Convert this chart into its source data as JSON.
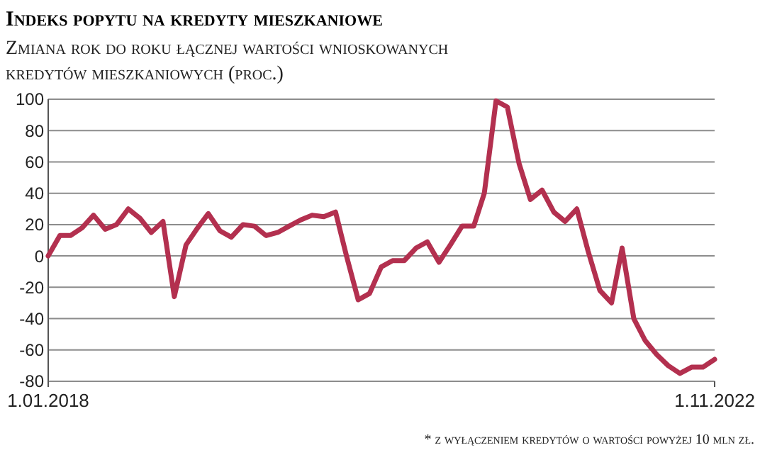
{
  "chart_data": {
    "type": "line",
    "title": "Indeks popytu na kredyty mieszkaniowe",
    "subtitle": "Zmiana rok do roku łącznej wartości wnioskowanych kredytów mieszkaniowych (proc.)",
    "annotations": [
      "* z wyłączeniem kredytów o wartości powyżej 10 mln zł."
    ],
    "x": [
      "2018-01",
      "2018-02",
      "2018-03",
      "2018-04",
      "2018-05",
      "2018-06",
      "2018-07",
      "2018-08",
      "2018-09",
      "2018-10",
      "2018-11",
      "2018-12",
      "2019-01",
      "2019-02",
      "2019-03",
      "2019-04",
      "2019-05",
      "2019-06",
      "2019-07",
      "2019-08",
      "2019-09",
      "2019-10",
      "2019-11",
      "2019-12",
      "2020-01",
      "2020-02",
      "2020-03",
      "2020-04",
      "2020-05",
      "2020-06",
      "2020-07",
      "2020-08",
      "2020-09",
      "2020-10",
      "2020-11",
      "2020-12",
      "2021-01",
      "2021-02",
      "2021-03",
      "2021-04",
      "2021-05",
      "2021-06",
      "2021-07",
      "2021-08",
      "2021-09",
      "2021-10",
      "2021-11",
      "2021-12",
      "2022-01",
      "2022-02",
      "2022-03",
      "2022-04",
      "2022-05",
      "2022-06",
      "2022-07",
      "2022-08",
      "2022-09",
      "2022-10",
      "2022-11"
    ],
    "series": [
      {
        "color": "#b3304f",
        "values": [
          0,
          13,
          13,
          18,
          26,
          17,
          20,
          30,
          24,
          15,
          22,
          -26,
          7,
          18,
          27,
          16,
          12,
          20,
          19,
          13,
          15,
          19,
          23,
          26,
          25,
          28,
          0,
          -28,
          -24,
          -7,
          -3,
          -3,
          5,
          9,
          -4,
          7,
          19,
          19,
          40,
          99,
          95,
          59,
          36,
          42,
          28,
          22,
          30,
          3,
          -22,
          -30,
          5,
          -40,
          -54,
          -63,
          -70,
          -75,
          -71,
          -71,
          -66
        ]
      }
    ],
    "xlim": [
      "2018-01",
      "2022-11"
    ],
    "xticks": [
      {
        "value": "2018-01-01",
        "label": "1.01.2018"
      },
      {
        "value": "2022-11-01",
        "label": "1.11.2022"
      }
    ],
    "ylim": [
      -80,
      100
    ],
    "yticks": [
      -80,
      -60,
      -40,
      -20,
      0,
      20,
      40,
      60,
      80,
      100
    ],
    "grid": "y",
    "marker": "none",
    "line_style": "solid"
  }
}
